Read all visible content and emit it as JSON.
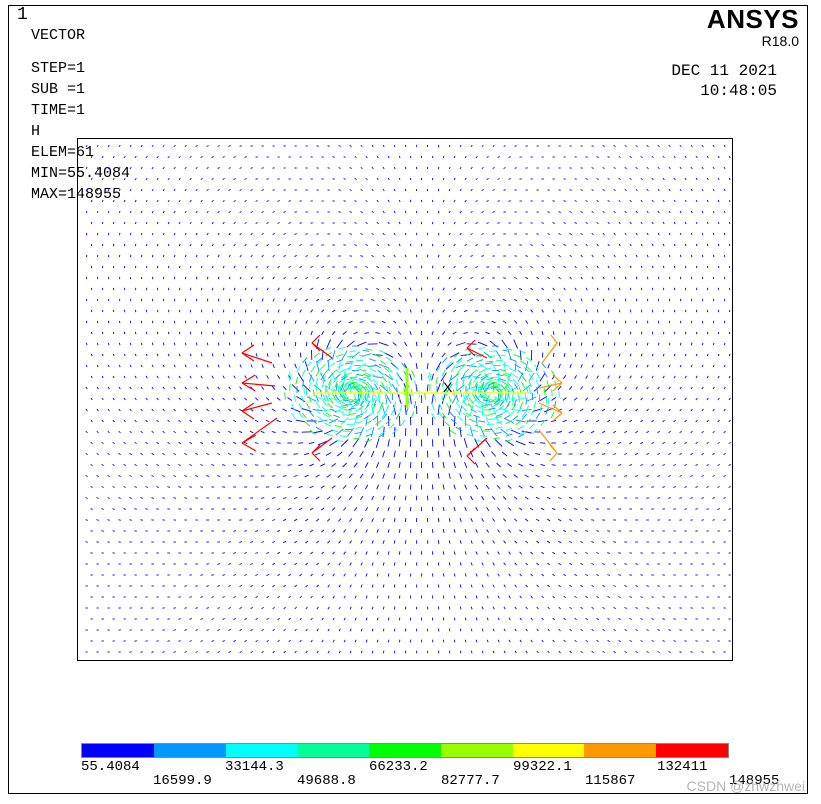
{
  "window_number": "1",
  "info_lines": {
    "plot_type": "VECTOR",
    "step": "STEP=1",
    "sub": "SUB =1",
    "time": "TIME=1",
    "item": "H",
    "elem": "ELEM=61",
    "min": "MIN=55.4084",
    "max": "MAX=148955"
  },
  "brand": {
    "logo": "ANSYS",
    "version": "R18.0"
  },
  "timestamp": {
    "date": "DEC 11 2021",
    "time": "10:48:05"
  },
  "legend": {
    "colors": [
      "#0000ff",
      "#0099ff",
      "#00ffff",
      "#00ff99",
      "#00ff00",
      "#99ff00",
      "#ffff00",
      "#ff9900",
      "#ff0000"
    ],
    "labels_lower_row": [
      "55.4084",
      "33144.3",
      "66233.2",
      "99322.1",
      "132411"
    ],
    "labels_upper_row": [
      "16599.9",
      "49688.8",
      "82777.7",
      "115867",
      "148955"
    ]
  },
  "plot": {
    "axis_symbol": "X"
  },
  "watermark": "CSDN @zhwzhwei"
}
